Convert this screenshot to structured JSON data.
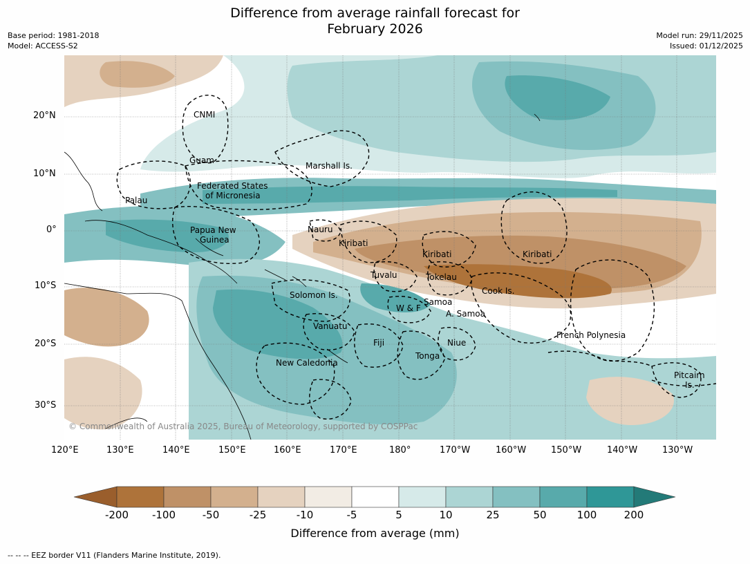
{
  "title_line1": "Difference from average rainfall forecast for",
  "title_line2": "February 2026",
  "meta_left": [
    "Base period: 1981-2018",
    "Model: ACCESS-S2"
  ],
  "meta_right": [
    "Model run: 29/11/2025",
    "Issued: 01/12/2025"
  ],
  "lat_ticks": [
    "20°N",
    "10°N",
    "0°",
    "10°S",
    "20°S",
    "30°S"
  ],
  "lon_ticks": [
    "120°E",
    "130°E",
    "140°E",
    "150°E",
    "160°E",
    "170°E",
    "180°",
    "170°W",
    "160°W",
    "150°W",
    "140°W",
    "130°W"
  ],
  "regions": {
    "cnmi": "CNMI",
    "guam": "Guam",
    "marshall": "Marshall Is.",
    "fsm1": "Federated States",
    "fsm2": "of Micronesia",
    "palau": "Palau",
    "png1": "Papua New",
    "png2": "Guinea",
    "nauru": "Nauru",
    "kiribati_w": "Kiribati",
    "kiribati_c": "Kiribati",
    "kiribati_e": "Kiribati",
    "tuvalu": "Tuvalu",
    "tokelau": "Tokelau",
    "cook": "Cook Is.",
    "solomon": "Solomon Is.",
    "samoa": "Samoa",
    "wf": "W & F",
    "asamoa": "A. Samoa",
    "vanuatu": "Vanuatu",
    "fiji": "Fiji",
    "niue": "Niue",
    "tonga": "Tonga",
    "newcal": "New Caledonia",
    "frpoly": "French Polynesia",
    "pitcairn1": "Pitcairn",
    "pitcairn2": "Is."
  },
  "copyright": "© Commonwealth of Australia 2025, Bureau of Meteorology, supported by COSPPac",
  "legend": {
    "colors": [
      "#9a5e2c",
      "#ae733a",
      "#bf9167",
      "#d3b08e",
      "#e5d2bf",
      "#f2ece4",
      "#ffffff",
      "#d6eae9",
      "#acd5d4",
      "#84c0c1",
      "#58aaab",
      "#2f9797",
      "#237a78"
    ],
    "ticks": [
      "-200",
      "-100",
      "-50",
      "-25",
      "-10",
      "-5",
      "5",
      "10",
      "25",
      "50",
      "100",
      "200"
    ],
    "label": "Difference from average (mm)"
  },
  "footnote": "--  --  -- EEZ border V11 (Flanders Marine Institute, 2019)."
}
